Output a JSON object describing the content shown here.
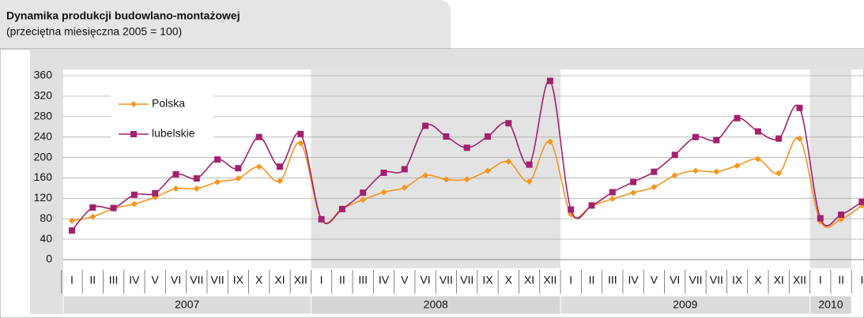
{
  "chart_data": {
    "type": "line",
    "title": "Dynamika produkcji budowlano-montażowej",
    "subtitle": "(przeciętna miesięczna 2005 = 100)",
    "categories": [
      "I",
      "II",
      "III",
      "IV",
      "V",
      "VI",
      "VII",
      "VII",
      "IX",
      "X",
      "XI",
      "XII",
      "I",
      "II",
      "III",
      "IV",
      "V",
      "VI",
      "VII",
      "VII",
      "IX",
      "X",
      "XI",
      "XII",
      "I",
      "II",
      "III",
      "IV",
      "V",
      "VI",
      "VII",
      "VII",
      "IX",
      "X",
      "XI",
      "XII",
      "I",
      "II",
      "I"
    ],
    "year_groups": [
      "2007",
      "2008",
      "2009",
      "2010"
    ],
    "series": [
      {
        "name": "Polska",
        "color": "#f7941d",
        "marker": "diamond",
        "values": [
          76,
          84,
          100,
          109,
          122,
          139,
          139,
          152,
          159,
          182,
          154,
          228,
          78,
          100,
          117,
          132,
          141,
          165,
          157,
          157,
          174,
          192,
          153,
          231,
          89,
          105,
          119,
          131,
          142,
          165,
          174,
          172,
          184,
          197,
          169,
          237,
          75,
          79,
          106
        ]
      },
      {
        "name": "lubelskie",
        "color": "#a3206f",
        "marker": "square",
        "values": [
          57,
          102,
          101,
          127,
          130,
          167,
          159,
          196,
          179,
          240,
          182,
          246,
          79,
          99,
          131,
          170,
          177,
          262,
          241,
          219,
          241,
          267,
          186,
          350,
          98,
          106,
          132,
          152,
          172,
          205,
          240,
          234,
          277,
          251,
          237,
          297,
          81,
          88,
          113
        ]
      }
    ],
    "ylim": [
      0,
      360
    ],
    "yticks": [
      0,
      40,
      80,
      120,
      160,
      200,
      240,
      280,
      320,
      360
    ],
    "grid": true
  }
}
